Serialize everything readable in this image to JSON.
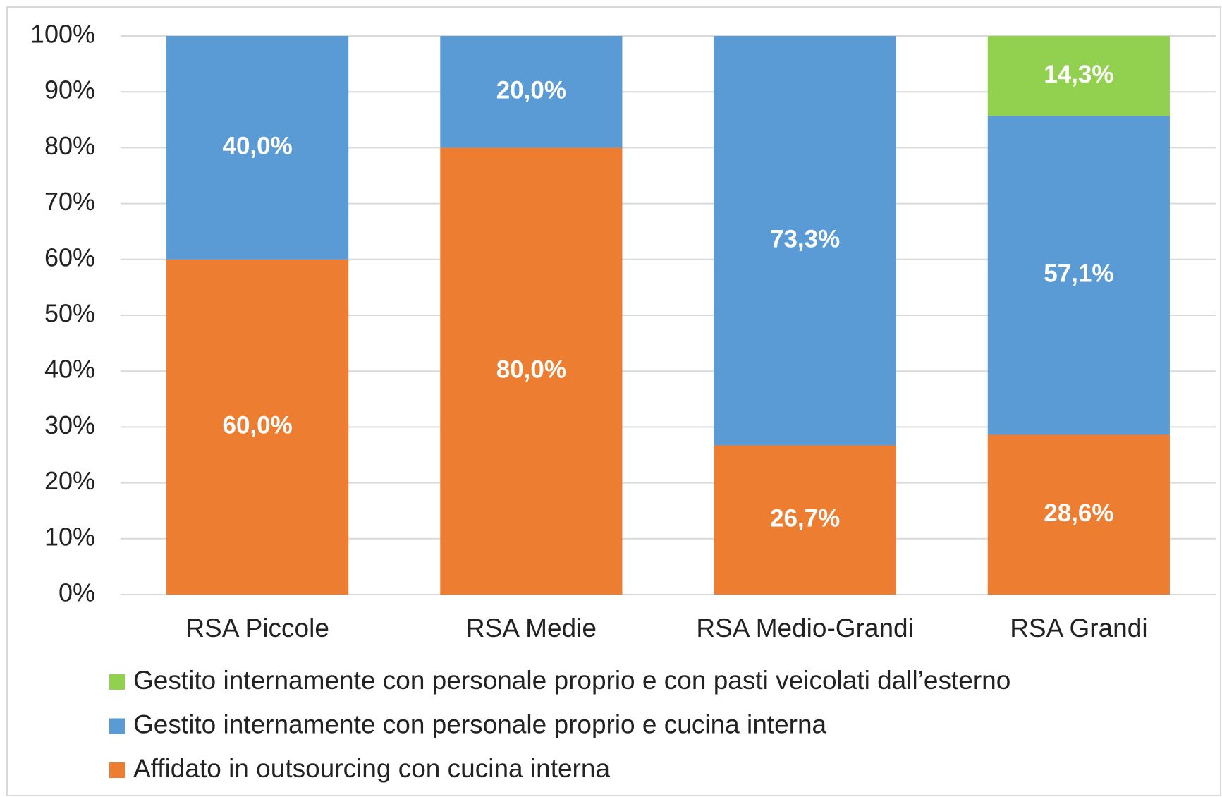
{
  "chart_data": {
    "type": "stacked-bar",
    "categories": [
      "RSA Piccole",
      "RSA Medie",
      "RSA Medio-Grandi",
      "RSA Grandi"
    ],
    "series": [
      {
        "name": "Affidato in outsourcing con cucina interna",
        "color": "#ed7d31",
        "values": [
          60.0,
          80.0,
          26.7,
          28.6
        ],
        "value_labels": [
          "60,0%",
          "80,0%",
          "26,7%",
          "28,6%"
        ]
      },
      {
        "name": "Gestito internamente con personale proprio e cucina interna",
        "color": "#5b9bd5",
        "values": [
          40.0,
          20.0,
          73.3,
          57.1
        ],
        "value_labels": [
          "40,0%",
          "20,0%",
          "73,3%",
          "57,1%"
        ]
      },
      {
        "name": "Gestito internamente con personale proprio e con pasti veicolati dall’esterno",
        "color": "#92d050",
        "values": [
          null,
          null,
          null,
          14.3
        ],
        "value_labels": [
          null,
          null,
          null,
          "14,3%"
        ]
      }
    ],
    "ylim": [
      0,
      100
    ],
    "yticks": [
      {
        "value": 0,
        "label": "0%"
      },
      {
        "value": 10,
        "label": "10%"
      },
      {
        "value": 20,
        "label": "20%"
      },
      {
        "value": 30,
        "label": "30%"
      },
      {
        "value": 40,
        "label": "40%"
      },
      {
        "value": 50,
        "label": "50%"
      },
      {
        "value": 60,
        "label": "60%"
      },
      {
        "value": 70,
        "label": "70%"
      },
      {
        "value": 80,
        "label": "80%"
      },
      {
        "value": 90,
        "label": "90%"
      },
      {
        "value": 100,
        "label": "100%"
      }
    ],
    "grid": true,
    "legend": "bottom"
  }
}
